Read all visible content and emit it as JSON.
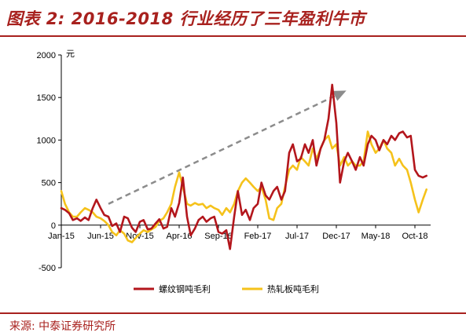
{
  "header": {
    "title": "图表 2:  2016-2018 行业经历了三年盈利牛市"
  },
  "source": "来源: 中泰证券研究所",
  "chart_data": {
    "type": "line",
    "title": "",
    "unit": "元",
    "ylim": [
      -500,
      2000
    ],
    "yticks": [
      -500,
      0,
      500,
      1000,
      1500,
      2000
    ],
    "x_tick_labels": [
      "Jan-15",
      "Jun-15",
      "Nov-15",
      "Apr-16",
      "Sep-16",
      "Feb-17",
      "Jul-17",
      "Dec-17",
      "May-18",
      "Oct-18"
    ],
    "x_tick_dates": [
      "2015-01",
      "2015-06",
      "2015-11",
      "2016-04",
      "2016-09",
      "2017-02",
      "2017-07",
      "2017-12",
      "2018-05",
      "2018-10"
    ],
    "xlim": [
      "2015-01",
      "2018-12"
    ],
    "legend_position": "bottom",
    "trend_arrow": {
      "from": [
        "2015-07",
        250
      ],
      "to": [
        "2018-01",
        1570
      ],
      "color": "#8c8c8c",
      "dashed": true
    },
    "series": [
      {
        "name": "螺纹钢吨毛利",
        "color": "#b3161c",
        "points": [
          [
            "2015-01",
            200
          ],
          [
            "2015-01-15",
            180
          ],
          [
            "2015-02",
            140
          ],
          [
            "2015-02-15",
            60
          ],
          [
            "2015-03",
            80
          ],
          [
            "2015-03-15",
            50
          ],
          [
            "2015-04",
            90
          ],
          [
            "2015-04-15",
            60
          ],
          [
            "2015-05",
            200
          ],
          [
            "2015-05-15",
            300
          ],
          [
            "2015-06",
            200
          ],
          [
            "2015-06-15",
            120
          ],
          [
            "2015-07",
            100
          ],
          [
            "2015-07-15",
            -10
          ],
          [
            "2015-08",
            20
          ],
          [
            "2015-08-15",
            -80
          ],
          [
            "2015-09",
            100
          ],
          [
            "2015-09-15",
            80
          ],
          [
            "2015-10",
            -30
          ],
          [
            "2015-10-15",
            -80
          ],
          [
            "2015-11",
            40
          ],
          [
            "2015-11-15",
            60
          ],
          [
            "2015-12",
            -50
          ],
          [
            "2015-12-15",
            -40
          ],
          [
            "2016-01",
            20
          ],
          [
            "2016-01-15",
            70
          ],
          [
            "2016-02",
            -40
          ],
          [
            "2016-02-15",
            -20
          ],
          [
            "2016-03",
            200
          ],
          [
            "2016-03-15",
            100
          ],
          [
            "2016-04",
            260
          ],
          [
            "2016-04-15",
            560
          ],
          [
            "2016-05",
            100
          ],
          [
            "2016-05-15",
            -120
          ],
          [
            "2016-06",
            -40
          ],
          [
            "2016-06-15",
            60
          ],
          [
            "2016-07",
            100
          ],
          [
            "2016-07-15",
            40
          ],
          [
            "2016-08",
            80
          ],
          [
            "2016-08-15",
            100
          ],
          [
            "2016-09",
            -80
          ],
          [
            "2016-09-15",
            -100
          ],
          [
            "2016-10",
            -60
          ],
          [
            "2016-10-15",
            -280
          ],
          [
            "2016-11",
            100
          ],
          [
            "2016-11-15",
            400
          ],
          [
            "2016-12",
            120
          ],
          [
            "2016-12-15",
            180
          ],
          [
            "2017-01",
            60
          ],
          [
            "2017-01-15",
            200
          ],
          [
            "2017-02",
            250
          ],
          [
            "2017-02-15",
            500
          ],
          [
            "2017-03",
            350
          ],
          [
            "2017-03-15",
            300
          ],
          [
            "2017-04",
            400
          ],
          [
            "2017-04-15",
            450
          ],
          [
            "2017-05",
            300
          ],
          [
            "2017-05-15",
            400
          ],
          [
            "2017-06",
            850
          ],
          [
            "2017-06-15",
            950
          ],
          [
            "2017-07",
            750
          ],
          [
            "2017-07-15",
            780
          ],
          [
            "2017-08",
            950
          ],
          [
            "2017-08-15",
            850
          ],
          [
            "2017-09",
            1000
          ],
          [
            "2017-09-15",
            700
          ],
          [
            "2017-10",
            900
          ],
          [
            "2017-10-15",
            1000
          ],
          [
            "2017-11",
            1250
          ],
          [
            "2017-11-15",
            1650
          ],
          [
            "2017-12",
            1200
          ],
          [
            "2017-12-15",
            500
          ],
          [
            "2018-01",
            750
          ],
          [
            "2018-01-15",
            850
          ],
          [
            "2018-02",
            750
          ],
          [
            "2018-02-15",
            650
          ],
          [
            "2018-03",
            800
          ],
          [
            "2018-03-15",
            700
          ],
          [
            "2018-04",
            950
          ],
          [
            "2018-04-15",
            1050
          ],
          [
            "2018-05",
            1000
          ],
          [
            "2018-05-15",
            880
          ],
          [
            "2018-06",
            1000
          ],
          [
            "2018-06-15",
            950
          ],
          [
            "2018-07",
            1050
          ],
          [
            "2018-07-15",
            1000
          ],
          [
            "2018-08",
            1080
          ],
          [
            "2018-08-15",
            1100
          ],
          [
            "2018-09",
            1030
          ],
          [
            "2018-09-15",
            1050
          ],
          [
            "2018-10",
            650
          ],
          [
            "2018-10-15",
            580
          ],
          [
            "2018-11",
            560
          ],
          [
            "2018-11-15",
            580
          ]
        ]
      },
      {
        "name": "热轧板吨毛利",
        "color": "#f5c21b",
        "points": [
          [
            "2015-01",
            400
          ],
          [
            "2015-01-15",
            250
          ],
          [
            "2015-02",
            150
          ],
          [
            "2015-02-15",
            100
          ],
          [
            "2015-03",
            100
          ],
          [
            "2015-03-15",
            150
          ],
          [
            "2015-04",
            200
          ],
          [
            "2015-04-15",
            180
          ],
          [
            "2015-05",
            150
          ],
          [
            "2015-05-15",
            100
          ],
          [
            "2015-06",
            80
          ],
          [
            "2015-06-15",
            50
          ],
          [
            "2015-07",
            0
          ],
          [
            "2015-07-15",
            -80
          ],
          [
            "2015-08",
            -120
          ],
          [
            "2015-08-15",
            -60
          ],
          [
            "2015-09",
            -100
          ],
          [
            "2015-09-15",
            -180
          ],
          [
            "2015-10",
            -200
          ],
          [
            "2015-10-15",
            -150
          ],
          [
            "2015-11",
            -100
          ],
          [
            "2015-11-15",
            -60
          ],
          [
            "2015-12",
            -80
          ],
          [
            "2015-12-15",
            -50
          ],
          [
            "2016-01",
            -20
          ],
          [
            "2016-01-15",
            50
          ],
          [
            "2016-02",
            80
          ],
          [
            "2016-02-15",
            150
          ],
          [
            "2016-03",
            250
          ],
          [
            "2016-03-15",
            450
          ],
          [
            "2016-04",
            620
          ],
          [
            "2016-04-15",
            450
          ],
          [
            "2016-05",
            250
          ],
          [
            "2016-05-15",
            230
          ],
          [
            "2016-06",
            260
          ],
          [
            "2016-06-15",
            240
          ],
          [
            "2016-07",
            250
          ],
          [
            "2016-07-15",
            200
          ],
          [
            "2016-08",
            230
          ],
          [
            "2016-08-15",
            200
          ],
          [
            "2016-09",
            180
          ],
          [
            "2016-09-15",
            120
          ],
          [
            "2016-10",
            200
          ],
          [
            "2016-10-15",
            150
          ],
          [
            "2016-11",
            250
          ],
          [
            "2016-11-15",
            400
          ],
          [
            "2016-12",
            500
          ],
          [
            "2016-12-15",
            550
          ],
          [
            "2017-01",
            500
          ],
          [
            "2017-01-15",
            450
          ],
          [
            "2017-02",
            400
          ],
          [
            "2017-02-15",
            450
          ],
          [
            "2017-03",
            300
          ],
          [
            "2017-03-15",
            80
          ],
          [
            "2017-04",
            60
          ],
          [
            "2017-04-15",
            200
          ],
          [
            "2017-05",
            250
          ],
          [
            "2017-05-15",
            450
          ],
          [
            "2017-06",
            650
          ],
          [
            "2017-06-15",
            700
          ],
          [
            "2017-07",
            650
          ],
          [
            "2017-07-15",
            800
          ],
          [
            "2017-08",
            750
          ],
          [
            "2017-08-15",
            700
          ],
          [
            "2017-09",
            900
          ],
          [
            "2017-09-15",
            780
          ],
          [
            "2017-10",
            900
          ],
          [
            "2017-10-15",
            1000
          ],
          [
            "2017-11",
            1050
          ],
          [
            "2017-11-15",
            900
          ],
          [
            "2017-12",
            950
          ],
          [
            "2017-12-15",
            700
          ],
          [
            "2018-01",
            800
          ],
          [
            "2018-01-15",
            700
          ],
          [
            "2018-02",
            750
          ],
          [
            "2018-02-15",
            700
          ],
          [
            "2018-03",
            700
          ],
          [
            "2018-03-15",
            750
          ],
          [
            "2018-04",
            1100
          ],
          [
            "2018-04-15",
            950
          ],
          [
            "2018-05",
            850
          ],
          [
            "2018-05-15",
            900
          ],
          [
            "2018-06",
            1000
          ],
          [
            "2018-06-15",
            900
          ],
          [
            "2018-07",
            850
          ],
          [
            "2018-07-15",
            700
          ],
          [
            "2018-08",
            780
          ],
          [
            "2018-08-15",
            700
          ],
          [
            "2018-09",
            650
          ],
          [
            "2018-09-15",
            500
          ],
          [
            "2018-10",
            300
          ],
          [
            "2018-10-15",
            150
          ],
          [
            "2018-11",
            300
          ],
          [
            "2018-11-15",
            420
          ]
        ]
      }
    ]
  }
}
